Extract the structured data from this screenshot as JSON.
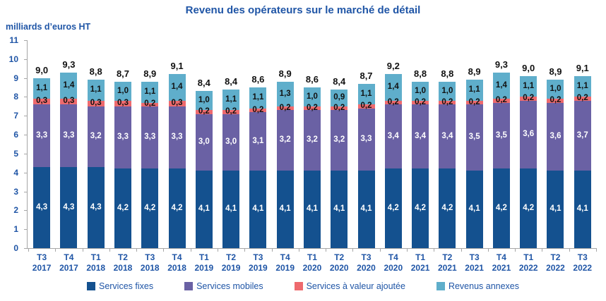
{
  "title": "Revenu des opérateurs sur le marché de détail",
  "unit_label": "milliards d’euros HT",
  "colors": {
    "services_fixes": "#14518F",
    "services_mobiles": "#6A61A4",
    "services_valeur_ajoutee": "#EE6A6E",
    "revenus_annexes": "#5FAECB",
    "axis_line": "#A6A6A6",
    "text_blue": "#1F55A6",
    "total_label": "#111111"
  },
  "chart_data": {
    "type": "bar",
    "stacked": true,
    "grid": false,
    "legend_position": "bottom",
    "ylim": [
      0,
      11
    ],
    "yticks": [
      0,
      1,
      2,
      3,
      4,
      5,
      6,
      7,
      8,
      9,
      10,
      11
    ],
    "decimal_separator": ",",
    "categories": [
      {
        "quarter": "T3",
        "year": "2017"
      },
      {
        "quarter": "T4",
        "year": "2017"
      },
      {
        "quarter": "T1",
        "year": "2018"
      },
      {
        "quarter": "T2",
        "year": "2018"
      },
      {
        "quarter": "T3",
        "year": "2018"
      },
      {
        "quarter": "T4",
        "year": "2018"
      },
      {
        "quarter": "T1",
        "year": "2019"
      },
      {
        "quarter": "T2",
        "year": "2019"
      },
      {
        "quarter": "T3",
        "year": "2019"
      },
      {
        "quarter": "T4",
        "year": "2019"
      },
      {
        "quarter": "T1",
        "year": "2020"
      },
      {
        "quarter": "T2",
        "year": "2020"
      },
      {
        "quarter": "T3",
        "year": "2020"
      },
      {
        "quarter": "T4",
        "year": "2020"
      },
      {
        "quarter": "T1",
        "year": "2021"
      },
      {
        "quarter": "T2",
        "year": "2021"
      },
      {
        "quarter": "T3",
        "year": "2021"
      },
      {
        "quarter": "T4",
        "year": "2021"
      },
      {
        "quarter": "T1",
        "year": "2022"
      },
      {
        "quarter": "T2",
        "year": "2022"
      },
      {
        "quarter": "T3",
        "year": "2022"
      }
    ],
    "series": [
      {
        "name": "Services fixes",
        "color": "#14518F",
        "label_color": "#FFFFFF",
        "values": [
          4.3,
          4.3,
          4.3,
          4.2,
          4.2,
          4.2,
          4.1,
          4.1,
          4.1,
          4.1,
          4.1,
          4.1,
          4.1,
          4.2,
          4.2,
          4.2,
          4.1,
          4.2,
          4.2,
          4.1,
          4.1
        ]
      },
      {
        "name": "Services mobiles",
        "color": "#6A61A4",
        "label_color": "#FFFFFF",
        "values": [
          3.3,
          3.3,
          3.2,
          3.3,
          3.3,
          3.3,
          3.0,
          3.0,
          3.1,
          3.2,
          3.2,
          3.2,
          3.3,
          3.4,
          3.4,
          3.4,
          3.5,
          3.5,
          3.6,
          3.6,
          3.7
        ]
      },
      {
        "name": "Services à valeur ajoutée",
        "color": "#EE6A6E",
        "label_color": "#111111",
        "values": [
          0.3,
          0.3,
          0.3,
          0.3,
          0.2,
          0.3,
          0.2,
          0.2,
          0.2,
          0.2,
          0.2,
          0.2,
          0.2,
          0.2,
          0.2,
          0.2,
          0.2,
          0.2,
          0.2,
          0.2,
          0.2
        ]
      },
      {
        "name": "Revenus annexes",
        "color": "#5FAECB",
        "label_color": "#111111",
        "values": [
          1.1,
          1.4,
          1.1,
          1.0,
          1.1,
          1.4,
          1.0,
          1.1,
          1.1,
          1.3,
          1.0,
          0.9,
          1.1,
          1.4,
          1.0,
          1.0,
          1.1,
          1.4,
          1.1,
          1.0,
          1.1
        ]
      }
    ],
    "totals": [
      9.0,
      9.3,
      8.8,
      8.7,
      8.9,
      9.1,
      8.4,
      8.4,
      8.6,
      8.9,
      8.6,
      8.4,
      8.7,
      9.2,
      8.8,
      8.8,
      8.9,
      9.3,
      9.0,
      8.9,
      9.1
    ]
  }
}
